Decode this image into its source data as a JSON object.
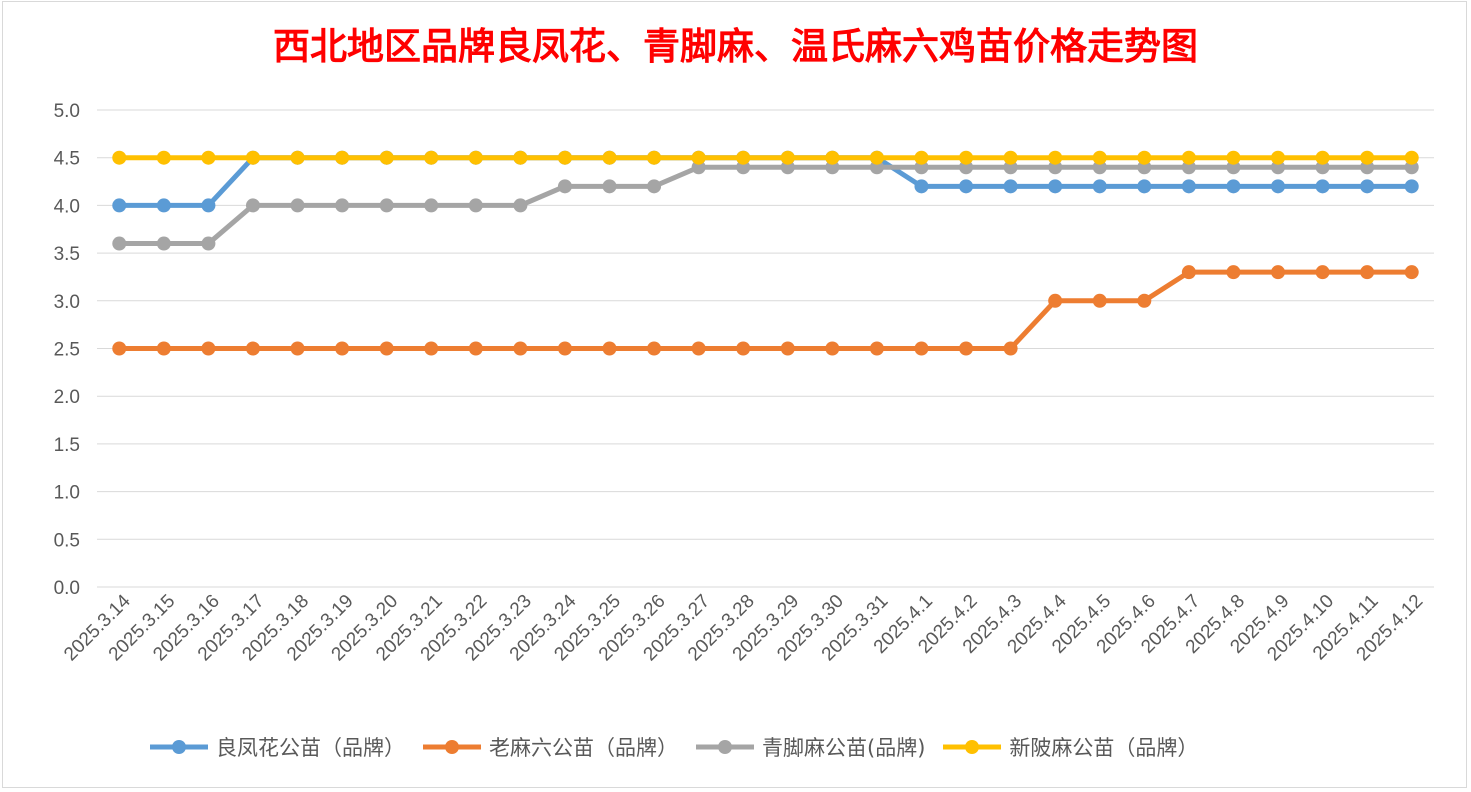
{
  "chart_data": {
    "type": "line",
    "title": "西北地区品牌良凤花、青脚麻、温氏麻六鸡苗价格走势图",
    "xlabel": "",
    "ylabel": "",
    "ylim": [
      0,
      5
    ],
    "yticks": [
      "0.0",
      "0.5",
      "1.0",
      "1.5",
      "2.0",
      "2.5",
      "3.0",
      "3.5",
      "4.0",
      "4.5",
      "5.0"
    ],
    "grid": true,
    "legend_position": "bottom",
    "categories": [
      "2025.3.14",
      "2025.3.15",
      "2025.3.16",
      "2025.3.17",
      "2025.3.18",
      "2025.3.19",
      "2025.3.20",
      "2025.3.21",
      "2025.3.22",
      "2025.3.23",
      "2025.3.24",
      "2025.3.25",
      "2025.3.26",
      "2025.3.27",
      "2025.3.28",
      "2025.3.29",
      "2025.3.30",
      "2025.3.31",
      "2025.4.1",
      "2025.4.2",
      "2025.4.3",
      "2025.4.4",
      "2025.4.5",
      "2025.4.6",
      "2025.4.7",
      "2025.4.8",
      "2025.4.9",
      "2025.4.10",
      "2025.4.11",
      "2025.4.12"
    ],
    "series": [
      {
        "name": "良凤花公苗（品牌）",
        "color": "#5b9bd5",
        "values": [
          4.0,
          4.0,
          4.0,
          4.5,
          4.5,
          4.5,
          4.5,
          4.5,
          4.5,
          4.5,
          4.5,
          4.5,
          4.5,
          4.5,
          4.5,
          4.5,
          4.5,
          4.5,
          4.2,
          4.2,
          4.2,
          4.2,
          4.2,
          4.2,
          4.2,
          4.2,
          4.2,
          4.2,
          4.2,
          4.2
        ]
      },
      {
        "name": "老麻六公苗（品牌）",
        "color": "#ed7d31",
        "values": [
          2.5,
          2.5,
          2.5,
          2.5,
          2.5,
          2.5,
          2.5,
          2.5,
          2.5,
          2.5,
          2.5,
          2.5,
          2.5,
          2.5,
          2.5,
          2.5,
          2.5,
          2.5,
          2.5,
          2.5,
          2.5,
          3.0,
          3.0,
          3.0,
          3.3,
          3.3,
          3.3,
          3.3,
          3.3,
          3.3
        ]
      },
      {
        "name": "青脚麻公苗(品牌)",
        "color": "#a5a5a5",
        "values": [
          3.6,
          3.6,
          3.6,
          4.0,
          4.0,
          4.0,
          4.0,
          4.0,
          4.0,
          4.0,
          4.2,
          4.2,
          4.2,
          4.4,
          4.4,
          4.4,
          4.4,
          4.4,
          4.4,
          4.4,
          4.4,
          4.4,
          4.4,
          4.4,
          4.4,
          4.4,
          4.4,
          4.4,
          4.4,
          4.4
        ]
      },
      {
        "name": "新陂麻公苗（品牌）",
        "color": "#ffc000",
        "values": [
          4.5,
          4.5,
          4.5,
          4.5,
          4.5,
          4.5,
          4.5,
          4.5,
          4.5,
          4.5,
          4.5,
          4.5,
          4.5,
          4.5,
          4.5,
          4.5,
          4.5,
          4.5,
          4.5,
          4.5,
          4.5,
          4.5,
          4.5,
          4.5,
          4.5,
          4.5,
          4.5,
          4.5,
          4.5,
          4.5
        ]
      }
    ]
  }
}
